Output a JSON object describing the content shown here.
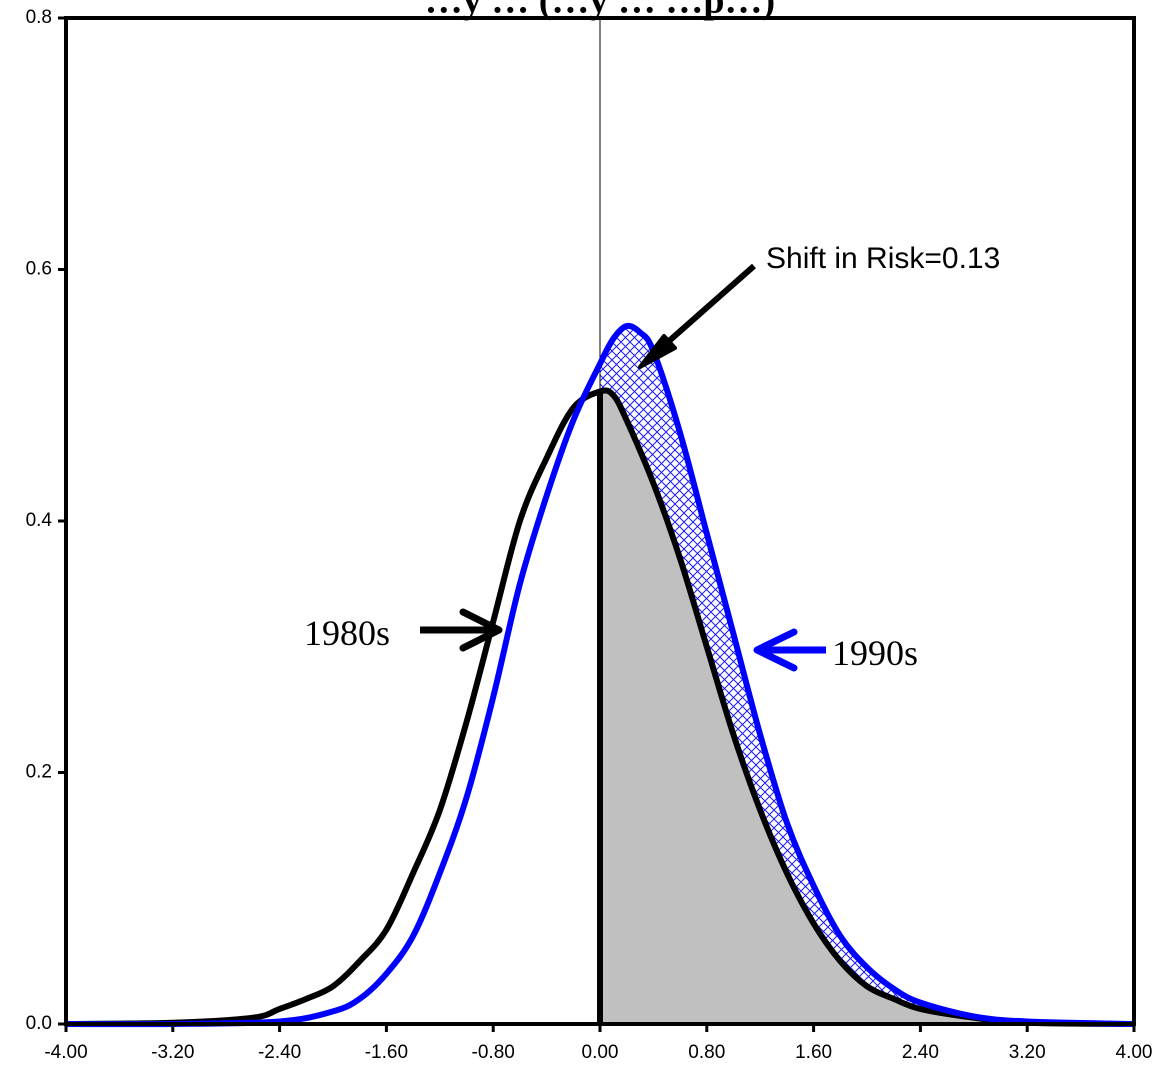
{
  "chart_data": {
    "type": "area",
    "title": "…y … (…y … …p…)",
    "xlabel": "",
    "ylabel": "",
    "xlim": [
      -4.0,
      4.0
    ],
    "ylim": [
      0.0,
      0.8
    ],
    "grid": false,
    "x_ticks": [
      "-4.00",
      "-3.20",
      "-2.40",
      "-1.60",
      "-0.80",
      "0.00",
      "0.80",
      "1.60",
      "2.40",
      "3.20",
      "4.00"
    ],
    "y_ticks": [
      "0.0",
      "0.2",
      "0.4",
      "0.6",
      "0.8"
    ],
    "series": [
      {
        "name": "1980s",
        "color": "#000000",
        "points": [
          [
            -4.0,
            0.0
          ],
          [
            -3.2,
            0.001
          ],
          [
            -2.6,
            0.005
          ],
          [
            -2.4,
            0.012
          ],
          [
            -2.2,
            0.02
          ],
          [
            -2.0,
            0.03
          ],
          [
            -1.8,
            0.05
          ],
          [
            -1.6,
            0.075
          ],
          [
            -1.4,
            0.12
          ],
          [
            -1.2,
            0.17
          ],
          [
            -1.0,
            0.24
          ],
          [
            -0.8,
            0.32
          ],
          [
            -0.6,
            0.4
          ],
          [
            -0.4,
            0.45
          ],
          [
            -0.2,
            0.49
          ],
          [
            0.0,
            0.503
          ],
          [
            0.1,
            0.5
          ],
          [
            0.2,
            0.48
          ],
          [
            0.4,
            0.43
          ],
          [
            0.6,
            0.37
          ],
          [
            0.8,
            0.3
          ],
          [
            1.0,
            0.23
          ],
          [
            1.2,
            0.17
          ],
          [
            1.4,
            0.12
          ],
          [
            1.6,
            0.08
          ],
          [
            1.8,
            0.05
          ],
          [
            2.0,
            0.03
          ],
          [
            2.2,
            0.02
          ],
          [
            2.4,
            0.012
          ],
          [
            2.8,
            0.005
          ],
          [
            3.2,
            0.001
          ],
          [
            4.0,
            0.0
          ]
        ]
      },
      {
        "name": "1990s",
        "color": "#0000ff",
        "points": [
          [
            -4.0,
            0.0
          ],
          [
            -3.2,
            0.0
          ],
          [
            -2.4,
            0.002
          ],
          [
            -2.0,
            0.01
          ],
          [
            -1.8,
            0.02
          ],
          [
            -1.6,
            0.04
          ],
          [
            -1.4,
            0.07
          ],
          [
            -1.2,
            0.12
          ],
          [
            -1.0,
            0.18
          ],
          [
            -0.8,
            0.26
          ],
          [
            -0.6,
            0.35
          ],
          [
            -0.4,
            0.42
          ],
          [
            -0.2,
            0.48
          ],
          [
            0.0,
            0.525
          ],
          [
            0.1,
            0.545
          ],
          [
            0.2,
            0.555
          ],
          [
            0.3,
            0.55
          ],
          [
            0.4,
            0.535
          ],
          [
            0.6,
            0.47
          ],
          [
            0.8,
            0.39
          ],
          [
            1.0,
            0.31
          ],
          [
            1.2,
            0.23
          ],
          [
            1.4,
            0.16
          ],
          [
            1.6,
            0.11
          ],
          [
            1.8,
            0.07
          ],
          [
            2.0,
            0.045
          ],
          [
            2.2,
            0.028
          ],
          [
            2.4,
            0.017
          ],
          [
            2.8,
            0.006
          ],
          [
            3.2,
            0.002
          ],
          [
            4.0,
            0.0
          ]
        ]
      }
    ],
    "annotations": {
      "label_1980s": "1980s",
      "label_1990s": "1990s",
      "shift_label": "Shift in Risk=0.13"
    },
    "fills": {
      "positive_area_1980s_color": "#c0c0c0",
      "shift_area_color": "#0000ff"
    },
    "zero_line": 0.0
  }
}
